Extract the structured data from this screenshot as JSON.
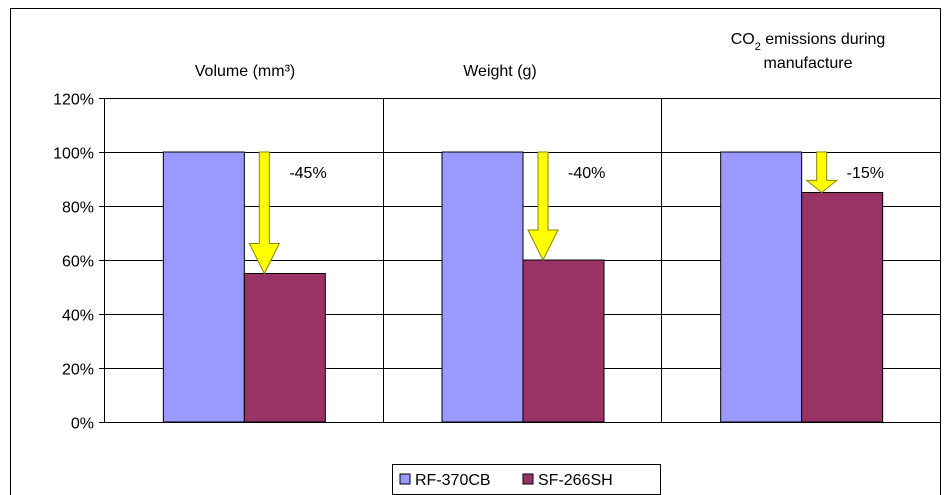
{
  "chart_data": {
    "type": "bar",
    "yticks": [
      "0%",
      "20%",
      "40%",
      "60%",
      "80%",
      "100%",
      "120%"
    ],
    "ylim": [
      0,
      120
    ],
    "grid": true,
    "legend_position": "bottom-center",
    "series": [
      {
        "name": "RF-370CB",
        "color": "#9999ff",
        "values": [
          100,
          100,
          100
        ]
      },
      {
        "name": "SF-266SH",
        "color": "#993366",
        "values": [
          55,
          60,
          85
        ]
      }
    ],
    "panels": [
      {
        "title": "Volume (mm³)",
        "change_label": "-45%"
      },
      {
        "title": "Weight (g)",
        "change_label": "-40%"
      },
      {
        "title_main": "CO",
        "title_sub": "2",
        "title_rest": " emissions during",
        "title_line2": "manufacture",
        "change_label": "-15%"
      }
    ],
    "arrow_color": "#ffff00"
  }
}
